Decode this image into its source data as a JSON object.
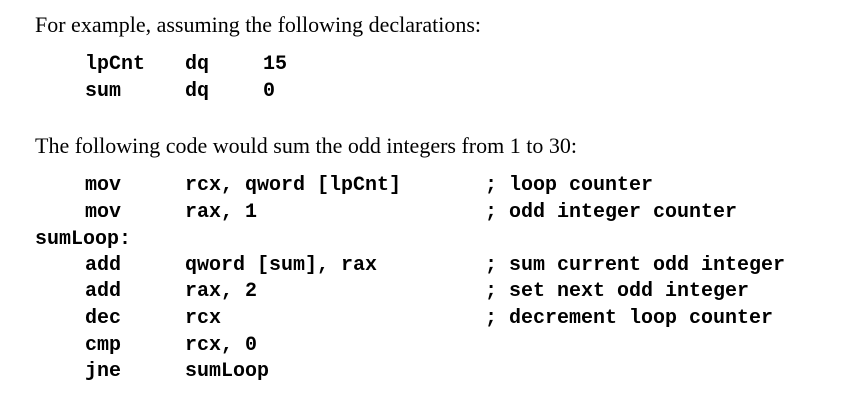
{
  "intro_text": "For example, assuming the following declarations:",
  "declarations": [
    {
      "name": "lpCnt",
      "type": "dq",
      "value": "15"
    },
    {
      "name": "sum",
      "type": "dq",
      "value": "0"
    }
  ],
  "sum_text": "The following code would sum the odd integers from 1 to 30:",
  "code": {
    "pre_label": [
      {
        "mnemonic": "mov",
        "operands": "rcx, qword [lpCnt]",
        "comment": "; loop counter"
      },
      {
        "mnemonic": "mov",
        "operands": "rax, 1",
        "comment": "; odd integer counter"
      }
    ],
    "label": "sumLoop:",
    "post_label": [
      {
        "mnemonic": "add",
        "operands": "qword [sum], rax",
        "comment": "; sum current odd integer"
      },
      {
        "mnemonic": "add",
        "operands": "rax, 2",
        "comment": "; set next odd integer"
      },
      {
        "mnemonic": "dec",
        "operands": "rcx",
        "comment": "; decrement loop counter"
      },
      {
        "mnemonic": "cmp",
        "operands": "rcx, 0",
        "comment": ""
      },
      {
        "mnemonic": "jne",
        "operands": "sumLoop",
        "comment": ""
      }
    ]
  }
}
